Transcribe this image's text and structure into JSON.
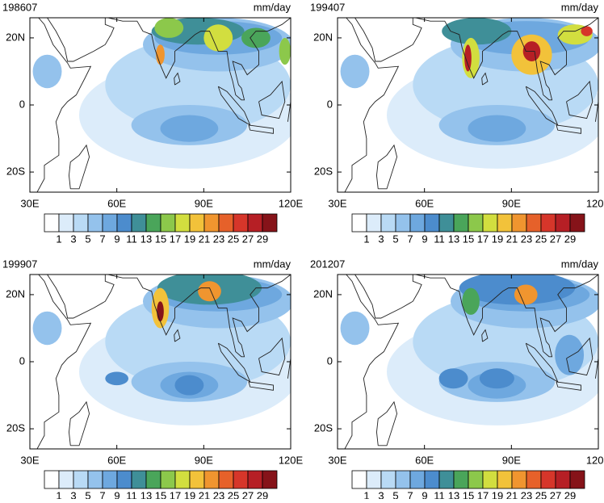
{
  "map": {
    "xlim": [
      30,
      120
    ],
    "ylim": [
      -26,
      26
    ],
    "xticks": [
      {
        "value": 30,
        "label": "30E"
      },
      {
        "value": 60,
        "label": "60E"
      },
      {
        "value": 90,
        "label": "90E"
      },
      {
        "value": 120,
        "label": "120E"
      }
    ],
    "yticks": [
      {
        "value": 20,
        "label": "20N"
      },
      0,
      {
        "value": -20,
        "label": "20S"
      }
    ]
  },
  "colorbar": {
    "levels": [
      1,
      3,
      5,
      7,
      9,
      11,
      13,
      15,
      17,
      19,
      21,
      23,
      25,
      27,
      29
    ],
    "colors": [
      "#ffffff",
      "#dcecfa",
      "#b9daf5",
      "#94c2ec",
      "#6ea8df",
      "#4c8ccd",
      "#3f8f98",
      "#4aa55a",
      "#8cc84b",
      "#d2de3f",
      "#f2c23a",
      "#f0952f",
      "#e6612a",
      "#d6362a",
      "#b61f25",
      "#861319"
    ]
  },
  "panels": [
    {
      "title": "198607",
      "unit": "mm/day"
    },
    {
      "title": "199407",
      "unit": "mm/day"
    },
    {
      "title": "199907",
      "unit": "mm/day"
    },
    {
      "title": "201207",
      "unit": "mm/day"
    }
  ]
}
